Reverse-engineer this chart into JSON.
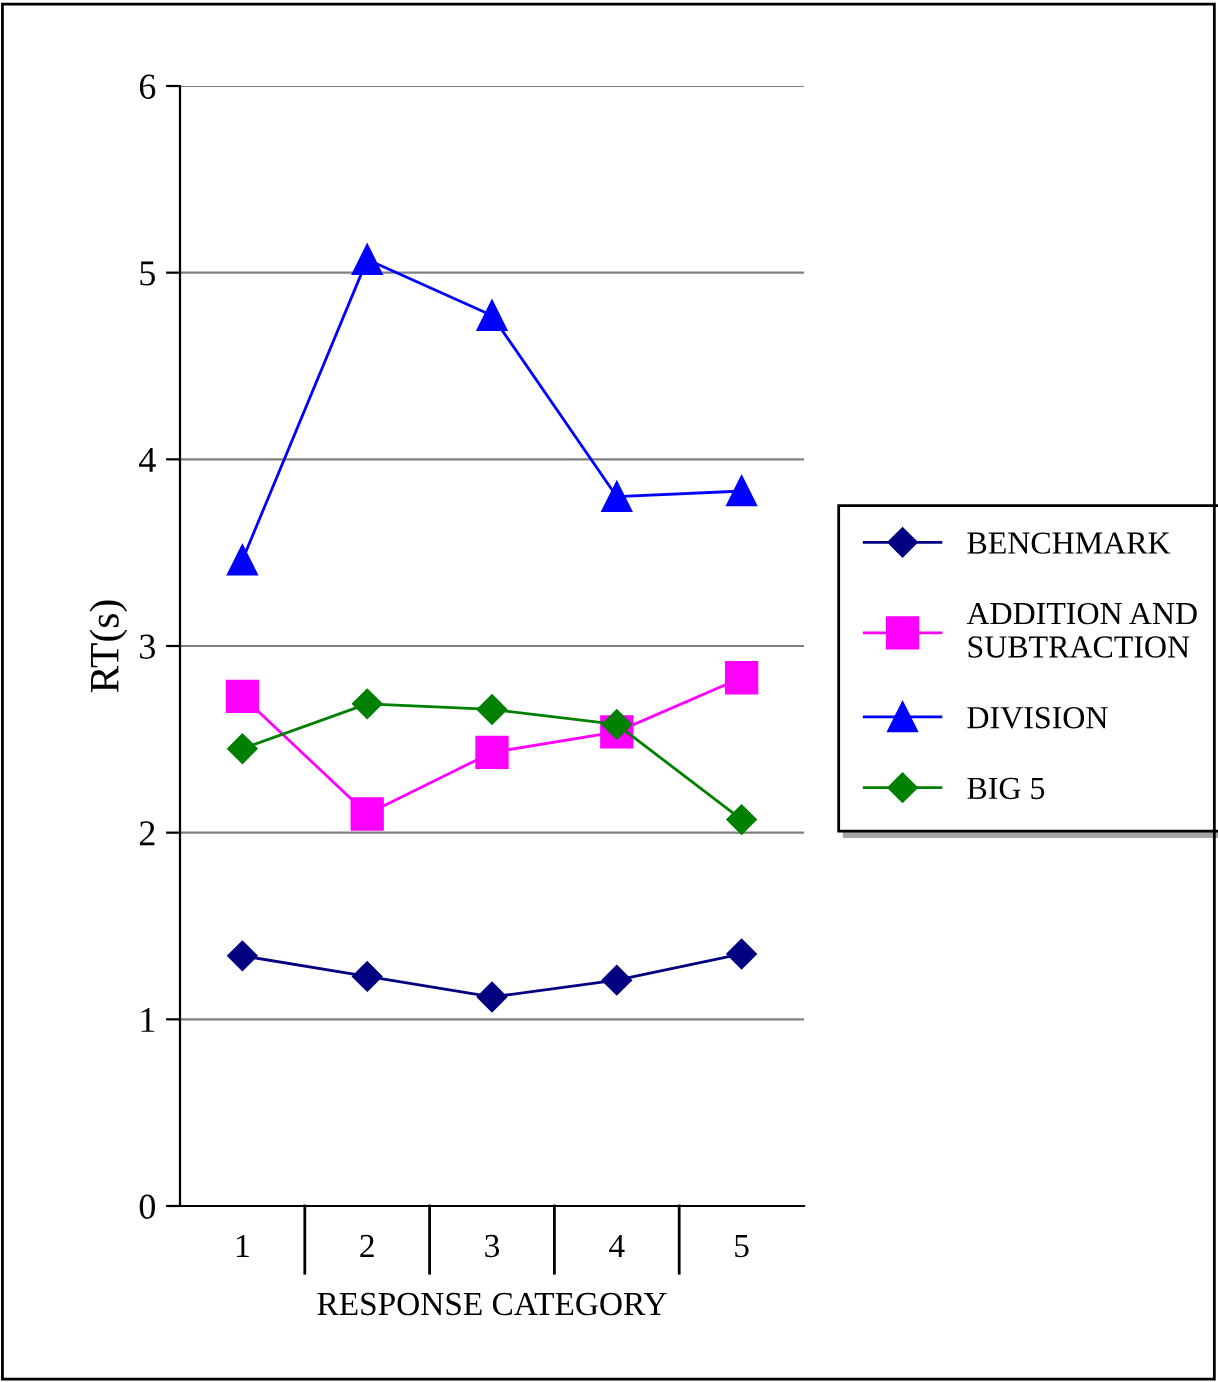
{
  "chart_data": {
    "type": "line",
    "xlabel": "RESPONSE CATEGORY",
    "ylabel": "RT(s)",
    "categories": [
      "1",
      "2",
      "3",
      "4",
      "5"
    ],
    "series": [
      {
        "name": "BENCHMARK",
        "color": "#000080",
        "marker": "diamond",
        "values": [
          1.34,
          1.23,
          1.12,
          1.21,
          1.35
        ]
      },
      {
        "name": "ADDITION AND SUBTRACTION",
        "color": "#ff00ff",
        "marker": "square",
        "values": [
          2.73,
          2.1,
          2.43,
          2.54,
          2.83
        ]
      },
      {
        "name": "DIVISION",
        "color": "#0000ff",
        "marker": "triangle",
        "values": [
          3.46,
          5.07,
          4.77,
          3.8,
          3.83
        ]
      },
      {
        "name": "BIG 5",
        "color": "#008000",
        "marker": "diamond",
        "values": [
          2.45,
          2.69,
          2.66,
          2.58,
          2.07
        ]
      }
    ],
    "ylim": [
      0,
      6
    ],
    "yticks": [
      0,
      1,
      2,
      3,
      4,
      5,
      6
    ],
    "grid": "y",
    "legend": "right",
    "line_style": "solid"
  }
}
